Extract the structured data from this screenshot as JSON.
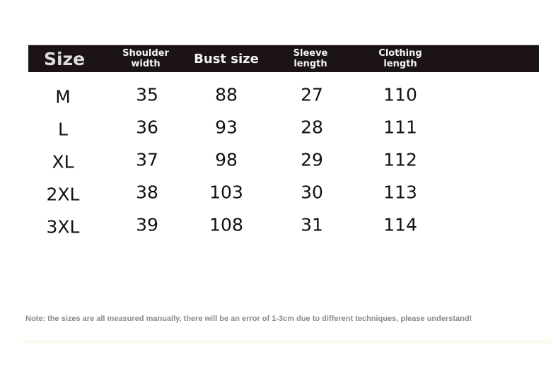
{
  "headers": [
    "Size",
    "Shoulder\nwidth",
    "Bust size",
    "Sleeve\nlength",
    "Clothing\nlength"
  ],
  "header_lines": {
    "size": "Size",
    "shoulder": [
      "Shoulder",
      "width"
    ],
    "bust": "Bust size",
    "sleeve": [
      "Sleeve",
      "length"
    ],
    "clothing": [
      "Clothing",
      "length"
    ]
  },
  "rows": [
    [
      "M",
      "35",
      "88",
      "27",
      "110"
    ],
    [
      "L",
      "36",
      "93",
      "28",
      "111"
    ],
    [
      "XL",
      "37",
      "98",
      "29",
      "112"
    ],
    [
      "2XL",
      "38",
      "103",
      "30",
      "113"
    ],
    [
      "3XL",
      "39",
      "108",
      "31",
      "114"
    ]
  ],
  "note": "Note: the sizes are all measured manually, there will be an error of 1-3cm due to different techniques, please understand!",
  "colors": {
    "header_bg": "#1c1414",
    "header_text": "#f4f4f4",
    "note": "#8a8a8a"
  }
}
